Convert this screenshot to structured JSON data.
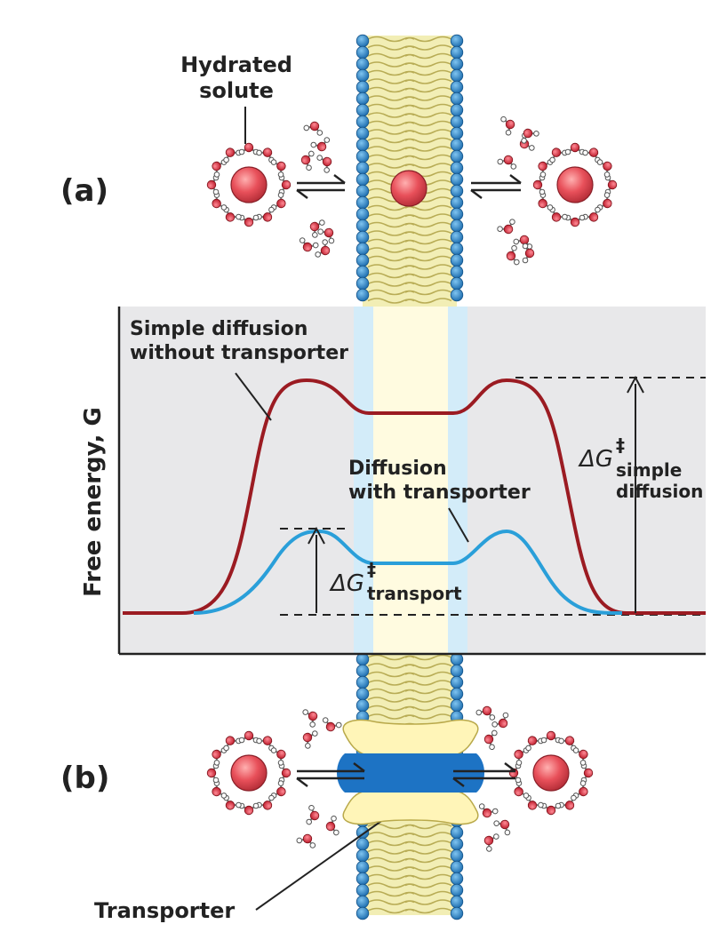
{
  "panel_a": {
    "label": "(a)",
    "hydrated_solute_label_line1": "Hydrated",
    "hydrated_solute_label_line2": "solute"
  },
  "panel_b": {
    "label": "(b)",
    "transporter_label": "Transporter"
  },
  "graph": {
    "y_axis_label": "Free energy, G",
    "simple_curve_label_line1": "Simple diffusion",
    "simple_curve_label_line2": "without transporter",
    "transport_curve_label_line1": "Diffusion",
    "transport_curve_label_line2": "with transporter",
    "dg_simple_symbol": "ΔG",
    "dg_simple_sup": "‡",
    "dg_simple_sub_line1": "simple",
    "dg_simple_sub_line2": "diffusion",
    "dg_transport_symbol": "ΔG",
    "dg_transport_sup": "‡",
    "dg_transport_sub": "transport"
  },
  "colors": {
    "simple_curve": "#9b1b22",
    "transport_curve": "#2a9fd9",
    "panel_bg": "#e8e8ea",
    "membrane_core": "#fffbe0",
    "membrane_edge": "#d6ecf7",
    "lipid_head": "#2b86c8",
    "lipid_tail": "#e8e3a0",
    "solute": "#e0454f",
    "transporter_body": "#fff5b8",
    "transporter_channel": "#1d73c4"
  }
}
